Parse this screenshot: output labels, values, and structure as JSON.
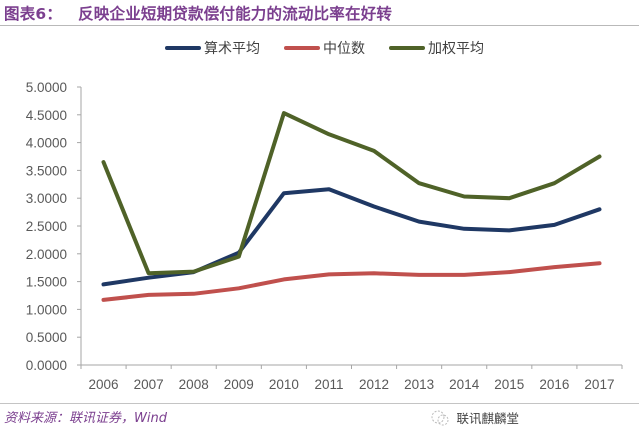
{
  "header": {
    "figure_label": "图表6：",
    "title": "反映企业短期贷款偿付能力的流动比率在好转"
  },
  "footer": {
    "source": "资料来源：联讯证券，Wind",
    "brand": "联讯麒麟堂"
  },
  "colors": {
    "accent": "#7b3f8f",
    "series_mean": "#1f3864",
    "series_median": "#c0504d",
    "series_weighted": "#4f6228",
    "axis": "#a6a6a6"
  },
  "chart_data": {
    "type": "line",
    "title": "反映企业短期贷款偿付能力的流动比率在好转",
    "xlabel": "",
    "ylabel": "",
    "categories": [
      "2006",
      "2007",
      "2008",
      "2009",
      "2010",
      "2011",
      "2012",
      "2013",
      "2014",
      "2015",
      "2016",
      "2017"
    ],
    "ylim": [
      0,
      5
    ],
    "yticks": [
      "0.0000",
      "0.5000",
      "1.0000",
      "1.5000",
      "2.0000",
      "2.5000",
      "3.0000",
      "3.5000",
      "4.0000",
      "4.5000",
      "5.0000"
    ],
    "grid": false,
    "legend_position": "top",
    "series": [
      {
        "name": "算术平均",
        "color": "#1f3864",
        "values": [
          1.45,
          1.57,
          1.67,
          2.02,
          3.09,
          3.16,
          2.85,
          2.58,
          2.45,
          2.42,
          2.52,
          2.8
        ]
      },
      {
        "name": "中位数",
        "color": "#c0504d",
        "values": [
          1.17,
          1.26,
          1.28,
          1.38,
          1.54,
          1.63,
          1.65,
          1.62,
          1.62,
          1.67,
          1.76,
          1.83
        ]
      },
      {
        "name": "加权平均",
        "color": "#4f6228",
        "values": [
          3.65,
          1.65,
          1.68,
          1.95,
          4.53,
          4.15,
          3.85,
          3.27,
          3.03,
          3.0,
          3.27,
          3.75
        ]
      }
    ]
  }
}
